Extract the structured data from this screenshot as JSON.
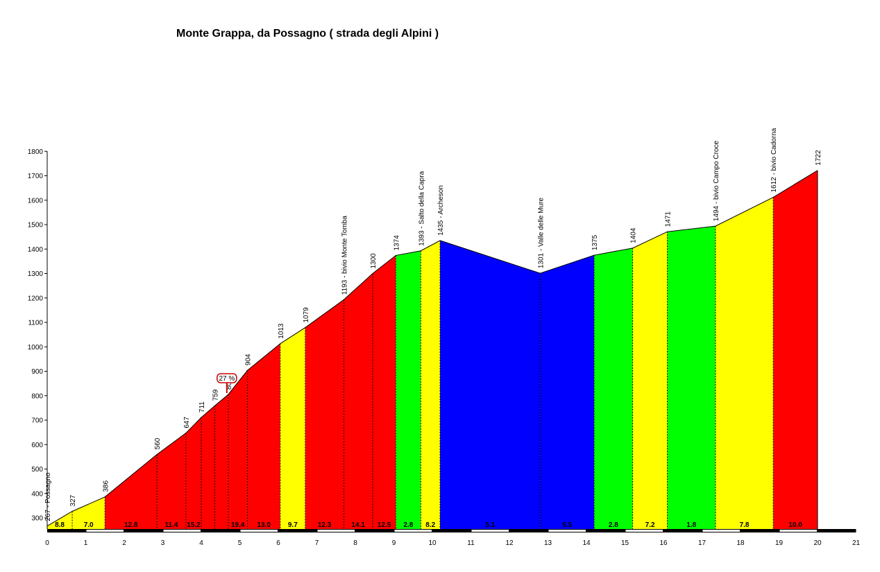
{
  "chart_data": {
    "type": "area",
    "title": "Monte Grappa, da Possagno ( strada degli Alpini )",
    "xlabel": "",
    "ylabel": "",
    "xlim": [
      0,
      21
    ],
    "ylim": [
      250,
      1800
    ],
    "x_ticks": [
      0,
      1,
      2,
      3,
      4,
      5,
      6,
      7,
      8,
      9,
      10,
      11,
      12,
      13,
      14,
      15,
      16,
      17,
      18,
      19,
      20,
      21
    ],
    "y_ticks": [
      300,
      400,
      500,
      600,
      700,
      800,
      900,
      1000,
      1100,
      1200,
      1300,
      1400,
      1500,
      1600,
      1700,
      1800
    ],
    "colors": {
      "red": "#ff0000",
      "yellow": "#ffff00",
      "green": "#00ff00",
      "blue": "#0000ff"
    },
    "points": [
      {
        "x": 0,
        "y": 267,
        "label": "267 - Possagno"
      },
      {
        "x": 0.65,
        "y": 327,
        "label": "327"
      },
      {
        "x": 1.5,
        "y": 386,
        "label": "386"
      },
      {
        "x": 2.85,
        "y": 560,
        "label": "560"
      },
      {
        "x": 3.6,
        "y": 647,
        "label": "647"
      },
      {
        "x": 4.0,
        "y": 711,
        "label": "711"
      },
      {
        "x": 4.35,
        "y": 759,
        "label": "759"
      },
      {
        "x": 4.7,
        "y": 805,
        "label": "805"
      },
      {
        "x": 5.2,
        "y": 904,
        "label": "904"
      },
      {
        "x": 6.05,
        "y": 1013,
        "label": "1013"
      },
      {
        "x": 6.7,
        "y": 1079,
        "label": "1079"
      },
      {
        "x": 7.7,
        "y": 1193,
        "label": "1193 - bivio Monte Tomba"
      },
      {
        "x": 8.45,
        "y": 1300,
        "label": "1300"
      },
      {
        "x": 9.05,
        "y": 1374,
        "label": "1374"
      },
      {
        "x": 9.7,
        "y": 1393,
        "label": "1393 - Salto della Capra"
      },
      {
        "x": 10.2,
        "y": 1435,
        "label": "1435 - Archeson"
      },
      {
        "x": 12.8,
        "y": 1301,
        "label": "1301 - Valle delle Mure"
      },
      {
        "x": 14.2,
        "y": 1375,
        "label": "1375"
      },
      {
        "x": 15.2,
        "y": 1404,
        "label": "1404"
      },
      {
        "x": 16.1,
        "y": 1471,
        "label": "1471"
      },
      {
        "x": 17.35,
        "y": 1494,
        "label": "1494 - bivio Campo Croce"
      },
      {
        "x": 18.85,
        "y": 1612,
        "label": "1612 - bivio Cadorna"
      },
      {
        "x": 20.0,
        "y": 1722,
        "label": "1722"
      }
    ],
    "segments": [
      {
        "from": 0,
        "to": 0.65,
        "grade": "8.8",
        "color": "yellow"
      },
      {
        "from": 0.65,
        "to": 1.5,
        "grade": "7.0",
        "color": "yellow"
      },
      {
        "from": 1.5,
        "to": 2.85,
        "grade": "12.8",
        "color": "red"
      },
      {
        "from": 2.85,
        "to": 3.6,
        "grade": "11.4",
        "color": "red"
      },
      {
        "from": 3.6,
        "to": 4.0,
        "grade": "15.2",
        "color": "red"
      },
      {
        "from": 4.0,
        "to": 4.35,
        "grade": "",
        "color": "red"
      },
      {
        "from": 4.35,
        "to": 4.7,
        "grade": "",
        "color": "red"
      },
      {
        "from": 4.7,
        "to": 5.2,
        "grade": "19.4",
        "color": "red"
      },
      {
        "from": 5.2,
        "to": 6.05,
        "grade": "13.0",
        "color": "red"
      },
      {
        "from": 6.05,
        "to": 6.7,
        "grade": "9.7",
        "color": "yellow"
      },
      {
        "from": 6.7,
        "to": 7.7,
        "grade": "12.3",
        "color": "red"
      },
      {
        "from": 7.7,
        "to": 8.45,
        "grade": "14.1",
        "color": "red"
      },
      {
        "from": 8.45,
        "to": 9.05,
        "grade": "12.5",
        "color": "red"
      },
      {
        "from": 9.05,
        "to": 9.7,
        "grade": "2.8",
        "color": "green"
      },
      {
        "from": 9.7,
        "to": 10.2,
        "grade": "8.2",
        "color": "yellow"
      },
      {
        "from": 10.2,
        "to": 12.8,
        "grade": "5.1",
        "color": "blue"
      },
      {
        "from": 12.8,
        "to": 14.2,
        "grade": "5.5",
        "color": "blue"
      },
      {
        "from": 14.2,
        "to": 15.2,
        "grade": "2.8",
        "color": "green"
      },
      {
        "from": 15.2,
        "to": 16.1,
        "grade": "7.2",
        "color": "yellow"
      },
      {
        "from": 16.1,
        "to": 17.35,
        "grade": "1.8",
        "color": "green"
      },
      {
        "from": 17.35,
        "to": 18.85,
        "grade": "7.8",
        "color": "yellow"
      },
      {
        "from": 18.85,
        "to": 20.0,
        "grade": "10.0",
        "color": "red"
      }
    ],
    "max_grade": {
      "label": "27 %",
      "x": 4.7,
      "y": 805
    }
  }
}
